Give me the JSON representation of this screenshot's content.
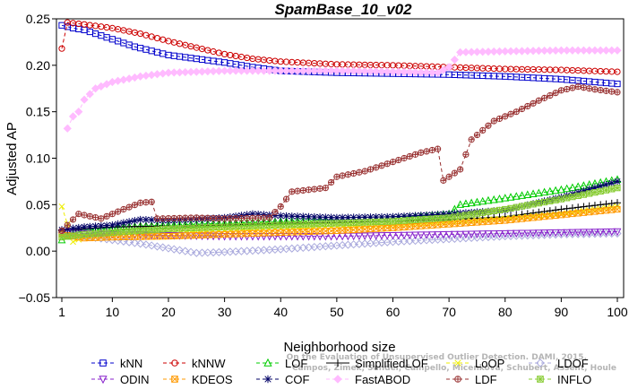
{
  "chart_data": {
    "type": "line",
    "title": "SpamBase_10_v02",
    "xlabel": "Neighborhood size",
    "ylabel": "Adjusted AP",
    "xlim": [
      1,
      100
    ],
    "ylim": [
      -0.05,
      0.25
    ],
    "x_ticks": [
      "1",
      "10",
      "20",
      "30",
      "40",
      "50",
      "60",
      "70",
      "80",
      "90",
      "100"
    ],
    "y_ticks": [
      "−0.05",
      "0.00",
      "0.05",
      "0.10",
      "0.15",
      "0.20",
      "0.25"
    ],
    "grid": false,
    "legend_placement": "bottom",
    "series": [
      {
        "name": "kNN",
        "color": "#0000cc",
        "marker": "square",
        "dash": "4,3",
        "points": [
          [
            1,
            0.243
          ],
          [
            3,
            0.24
          ],
          [
            5,
            0.238
          ],
          [
            8,
            0.232
          ],
          [
            10,
            0.228
          ],
          [
            14,
            0.22
          ],
          [
            20,
            0.211
          ],
          [
            25,
            0.207
          ],
          [
            30,
            0.203
          ],
          [
            35,
            0.198
          ],
          [
            40,
            0.194
          ],
          [
            45,
            0.193
          ],
          [
            50,
            0.192
          ],
          [
            60,
            0.191
          ],
          [
            70,
            0.19
          ],
          [
            80,
            0.188
          ],
          [
            90,
            0.185
          ],
          [
            100,
            0.18
          ]
        ]
      },
      {
        "name": "kNNW",
        "color": "#cc0000",
        "marker": "circle",
        "dash": "4,3",
        "points": [
          [
            1,
            0.218
          ],
          [
            2,
            0.246
          ],
          [
            5,
            0.244
          ],
          [
            10,
            0.24
          ],
          [
            15,
            0.234
          ],
          [
            20,
            0.226
          ],
          [
            25,
            0.219
          ],
          [
            30,
            0.212
          ],
          [
            35,
            0.207
          ],
          [
            40,
            0.204
          ],
          [
            50,
            0.201
          ],
          [
            60,
            0.2
          ],
          [
            70,
            0.198
          ],
          [
            80,
            0.196
          ],
          [
            90,
            0.195
          ],
          [
            100,
            0.193
          ]
        ]
      },
      {
        "name": "LOF",
        "color": "#00cc00",
        "marker": "triangle",
        "dash": "4,3",
        "points": [
          [
            1,
            0.012
          ],
          [
            3,
            0.02
          ],
          [
            5,
            0.022
          ],
          [
            10,
            0.025
          ],
          [
            15,
            0.027
          ],
          [
            20,
            0.028
          ],
          [
            30,
            0.03
          ],
          [
            40,
            0.032
          ],
          [
            50,
            0.033
          ],
          [
            60,
            0.035
          ],
          [
            70,
            0.04
          ],
          [
            72,
            0.05
          ],
          [
            80,
            0.057
          ],
          [
            90,
            0.066
          ],
          [
            100,
            0.077
          ]
        ]
      },
      {
        "name": "SimplifiedLOF",
        "color": "#000000",
        "marker": "plus",
        "dash": "",
        "points": [
          [
            1,
            0.022
          ],
          [
            5,
            0.024
          ],
          [
            10,
            0.026
          ],
          [
            20,
            0.027
          ],
          [
            30,
            0.028
          ],
          [
            40,
            0.03
          ],
          [
            50,
            0.031
          ],
          [
            60,
            0.032
          ],
          [
            70,
            0.034
          ],
          [
            80,
            0.037
          ],
          [
            90,
            0.045
          ],
          [
            100,
            0.052
          ]
        ]
      },
      {
        "name": "LoOP",
        "color": "#eeee00",
        "marker": "x",
        "dash": "4,3",
        "points": [
          [
            1,
            0.048
          ],
          [
            3,
            0.01
          ],
          [
            5,
            0.015
          ],
          [
            10,
            0.018
          ],
          [
            20,
            0.02
          ],
          [
            30,
            0.022
          ],
          [
            40,
            0.024
          ],
          [
            50,
            0.026
          ],
          [
            60,
            0.028
          ],
          [
            70,
            0.031
          ],
          [
            80,
            0.035
          ],
          [
            90,
            0.04
          ],
          [
            100,
            0.048
          ]
        ]
      },
      {
        "name": "LDOF",
        "color": "#aaaadd",
        "marker": "diamond",
        "dash": "4,3",
        "points": [
          [
            1,
            0.02
          ],
          [
            5,
            0.016
          ],
          [
            10,
            0.012
          ],
          [
            15,
            0.008
          ],
          [
            20,
            0.003
          ],
          [
            25,
            -0.002
          ],
          [
            30,
            -0.001
          ],
          [
            40,
            0.002
          ],
          [
            50,
            0.006
          ],
          [
            60,
            0.01
          ],
          [
            70,
            0.013
          ],
          [
            80,
            0.016
          ],
          [
            90,
            0.018
          ],
          [
            100,
            0.019
          ]
        ]
      },
      {
        "name": "ODIN",
        "color": "#8822cc",
        "marker": "triangle-down",
        "dash": "4,3",
        "points": [
          [
            1,
            0.02
          ],
          [
            5,
            0.019
          ],
          [
            10,
            0.018
          ],
          [
            20,
            0.017
          ],
          [
            30,
            0.016
          ],
          [
            40,
            0.016
          ],
          [
            50,
            0.016
          ],
          [
            60,
            0.017
          ],
          [
            70,
            0.018
          ],
          [
            80,
            0.019
          ],
          [
            90,
            0.02
          ],
          [
            100,
            0.021
          ]
        ]
      },
      {
        "name": "KDEOS",
        "color": "#ff9900",
        "marker": "square-x",
        "dash": "4,3",
        "points": [
          [
            1,
            0.018
          ],
          [
            5,
            0.014
          ],
          [
            10,
            0.015
          ],
          [
            20,
            0.016
          ],
          [
            30,
            0.018
          ],
          [
            40,
            0.02
          ],
          [
            50,
            0.022
          ],
          [
            60,
            0.025
          ],
          [
            70,
            0.029
          ],
          [
            80,
            0.033
          ],
          [
            90,
            0.039
          ],
          [
            100,
            0.045
          ]
        ]
      },
      {
        "name": "COF",
        "color": "#000066",
        "marker": "star",
        "dash": "4,3",
        "points": [
          [
            1,
            0.023
          ],
          [
            5,
            0.026
          ],
          [
            10,
            0.028
          ],
          [
            15,
            0.034
          ],
          [
            20,
            0.033
          ],
          [
            30,
            0.036
          ],
          [
            35,
            0.04
          ],
          [
            40,
            0.038
          ],
          [
            50,
            0.036
          ],
          [
            60,
            0.037
          ],
          [
            70,
            0.04
          ],
          [
            80,
            0.044
          ],
          [
            90,
            0.058
          ],
          [
            100,
            0.075
          ]
        ]
      },
      {
        "name": "FastABOD",
        "color": "#ffbbff",
        "marker": "diamond-filled",
        "dash": "4,3",
        "points": [
          [
            2,
            0.132
          ],
          [
            3,
            0.145
          ],
          [
            4,
            0.15
          ],
          [
            5,
            0.163
          ],
          [
            7,
            0.175
          ],
          [
            10,
            0.182
          ],
          [
            15,
            0.188
          ],
          [
            20,
            0.192
          ],
          [
            25,
            0.193
          ],
          [
            30,
            0.194
          ],
          [
            40,
            0.194
          ],
          [
            50,
            0.194
          ],
          [
            60,
            0.193
          ],
          [
            68,
            0.192
          ],
          [
            70,
            0.198
          ],
          [
            72,
            0.214
          ],
          [
            80,
            0.215
          ],
          [
            90,
            0.216
          ],
          [
            100,
            0.216
          ]
        ]
      },
      {
        "name": "LDF",
        "color": "#993333",
        "marker": "circle-plus",
        "dash": "4,3",
        "points": [
          [
            1,
            0.022
          ],
          [
            4,
            0.04
          ],
          [
            8,
            0.035
          ],
          [
            12,
            0.045
          ],
          [
            15,
            0.052
          ],
          [
            17,
            0.053
          ],
          [
            18,
            0.035
          ],
          [
            25,
            0.036
          ],
          [
            30,
            0.035
          ],
          [
            38,
            0.036
          ],
          [
            40,
            0.048
          ],
          [
            42,
            0.064
          ],
          [
            48,
            0.068
          ],
          [
            50,
            0.08
          ],
          [
            55,
            0.086
          ],
          [
            60,
            0.096
          ],
          [
            65,
            0.106
          ],
          [
            68,
            0.11
          ],
          [
            69,
            0.076
          ],
          [
            72,
            0.088
          ],
          [
            74,
            0.12
          ],
          [
            78,
            0.14
          ],
          [
            82,
            0.15
          ],
          [
            86,
            0.162
          ],
          [
            90,
            0.173
          ],
          [
            93,
            0.177
          ],
          [
            96,
            0.174
          ],
          [
            100,
            0.171
          ]
        ]
      },
      {
        "name": "INFLO",
        "color": "#88cc33",
        "marker": "square-star",
        "dash": "4,3",
        "points": [
          [
            1,
            0.015
          ],
          [
            5,
            0.018
          ],
          [
            10,
            0.02
          ],
          [
            20,
            0.024
          ],
          [
            30,
            0.026
          ],
          [
            40,
            0.028
          ],
          [
            50,
            0.03
          ],
          [
            60,
            0.032
          ],
          [
            70,
            0.036
          ],
          [
            80,
            0.045
          ],
          [
            90,
            0.056
          ],
          [
            100,
            0.068
          ]
        ]
      }
    ]
  },
  "watermark": {
    "line1": "Campos, Zimek, Sander, Campello, Micenkova, Schubert, Assent, Houle",
    "line2": "On the Evaluation of Unsupervised Outlier Detection. DAMI, 2015."
  }
}
